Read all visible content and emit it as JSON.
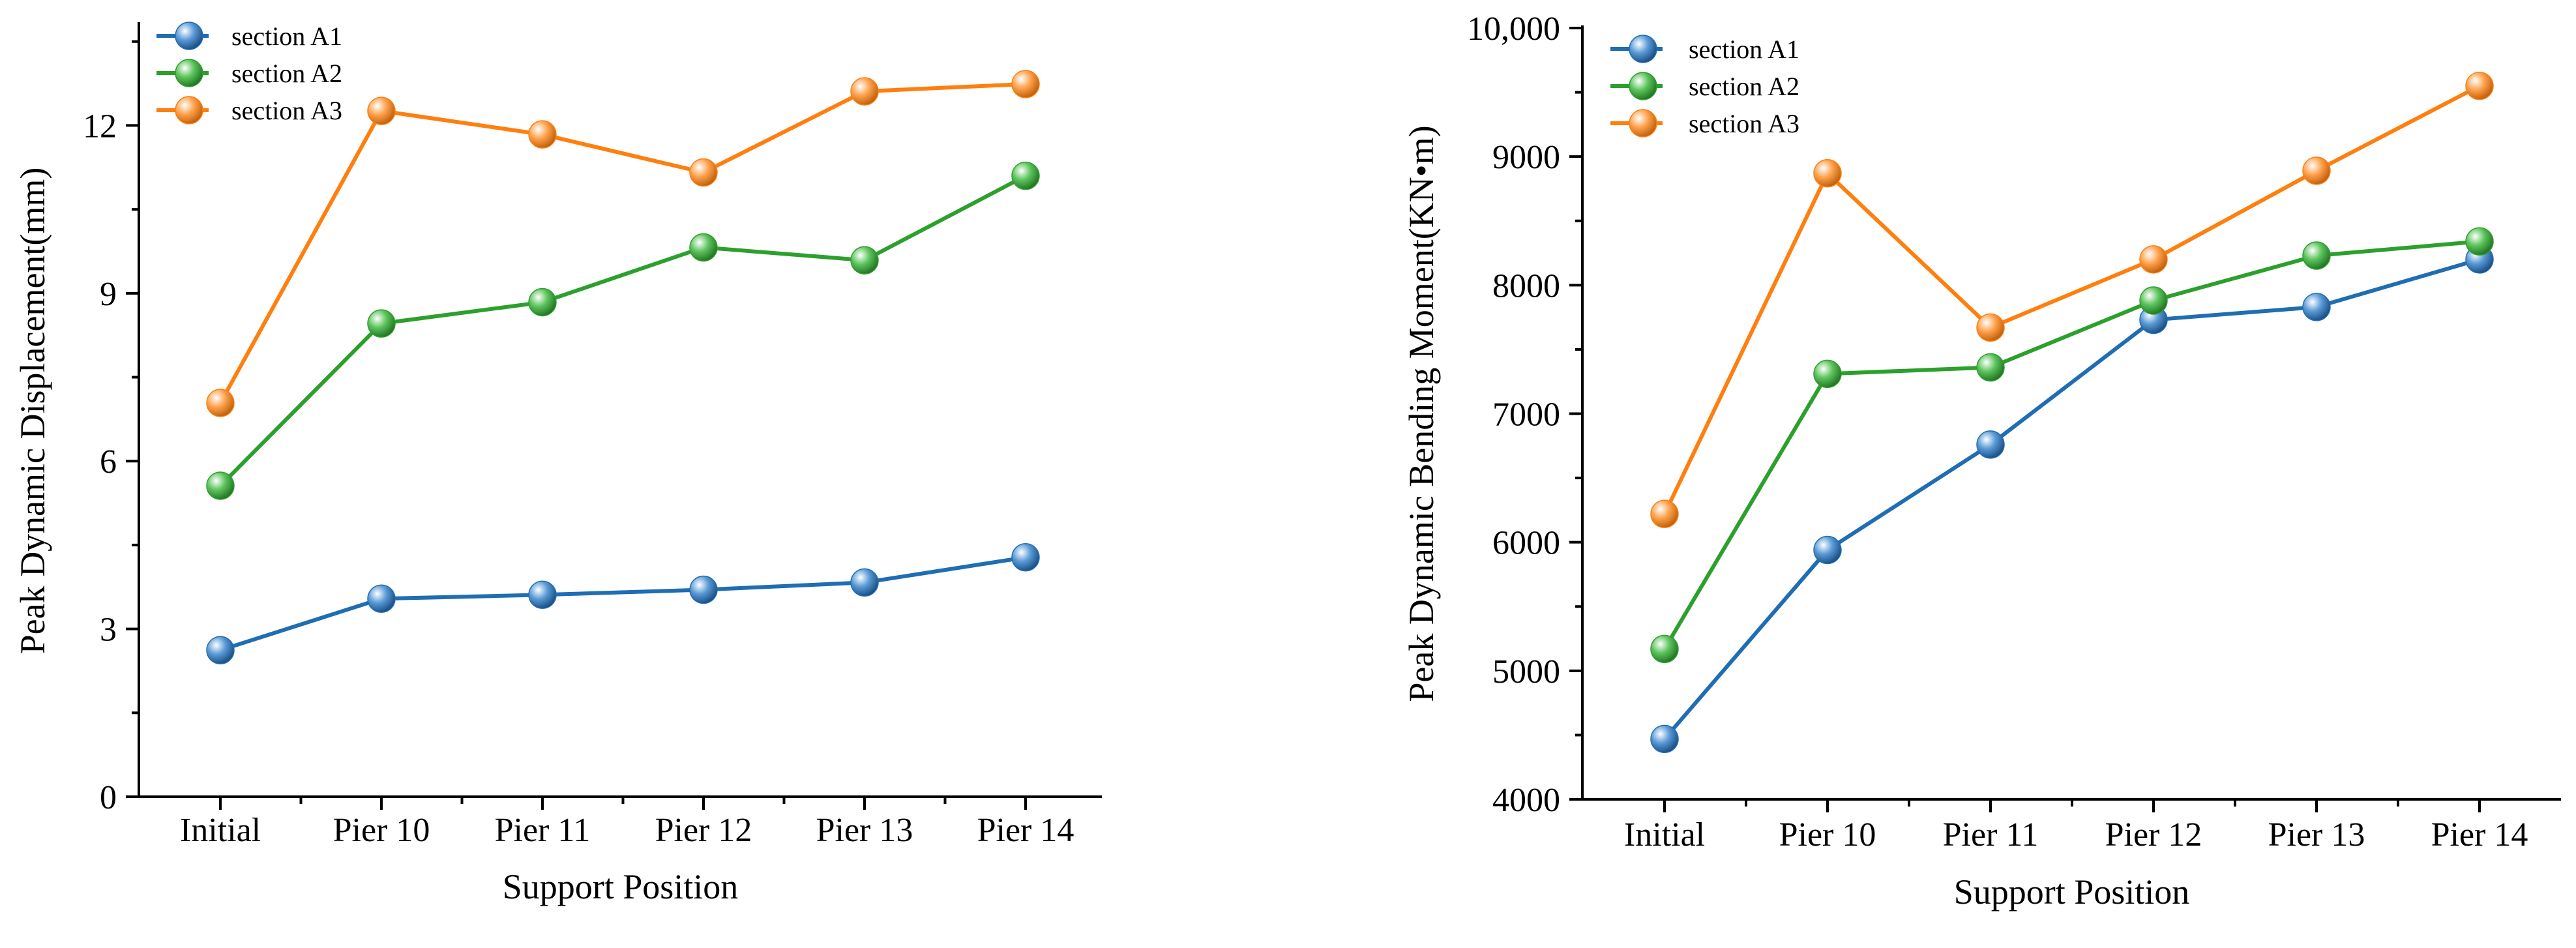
{
  "chart_data": [
    {
      "type": "line",
      "title": "",
      "xlabel": "Support Position",
      "ylabel": "Peak Dynamic Displacement(mm)",
      "categories": [
        "Initial",
        "Pier 10",
        "Pier 11",
        "Pier 12",
        "Pier 13",
        "Pier 14"
      ],
      "ylim": [
        0,
        13.8
      ],
      "yticks": [
        0,
        3,
        6,
        9,
        12
      ],
      "ytick_labels": [
        "0",
        "3",
        "6",
        "9",
        "12"
      ],
      "grid": false,
      "legend_position": "top-left",
      "series": [
        {
          "name": "section A1",
          "color": "#1f6db3",
          "values": [
            2.62,
            3.54,
            3.61,
            3.7,
            3.83,
            4.28
          ]
        },
        {
          "name": "section A2",
          "color": "#2ca02c",
          "values": [
            5.56,
            8.46,
            8.84,
            9.82,
            9.59,
            11.1
          ]
        },
        {
          "name": "section A3",
          "color": "#ff7f0e",
          "values": [
            7.04,
            12.26,
            11.84,
            11.16,
            12.61,
            12.74
          ]
        }
      ]
    },
    {
      "type": "line",
      "title": "",
      "xlabel": "Support Position",
      "ylabel": "Peak Dynamic Bending Moment(KN•m)",
      "categories": [
        "Initial",
        "Pier 10",
        "Pier 11",
        "Pier 12",
        "Pier 13",
        "Pier 14"
      ],
      "ylim": [
        4000,
        10000
      ],
      "yticks": [
        4000,
        5000,
        6000,
        7000,
        8000,
        9000,
        10000
      ],
      "ytick_labels": [
        "4000",
        "5000",
        "6000",
        "7000",
        "8000",
        "9000",
        "10,000"
      ],
      "grid": false,
      "legend_position": "top-left",
      "series": [
        {
          "name": "section A1",
          "color": "#1f6db3",
          "values": [
            4470,
            5940,
            6760,
            7730,
            7830,
            8200
          ]
        },
        {
          "name": "section A2",
          "color": "#2ca02c",
          "values": [
            5170,
            7310,
            7360,
            7880,
            8230,
            8340
          ]
        },
        {
          "name": "section A3",
          "color": "#ff7f0e",
          "values": [
            6220,
            8870,
            7670,
            8200,
            8890,
            9550
          ]
        }
      ]
    }
  ]
}
